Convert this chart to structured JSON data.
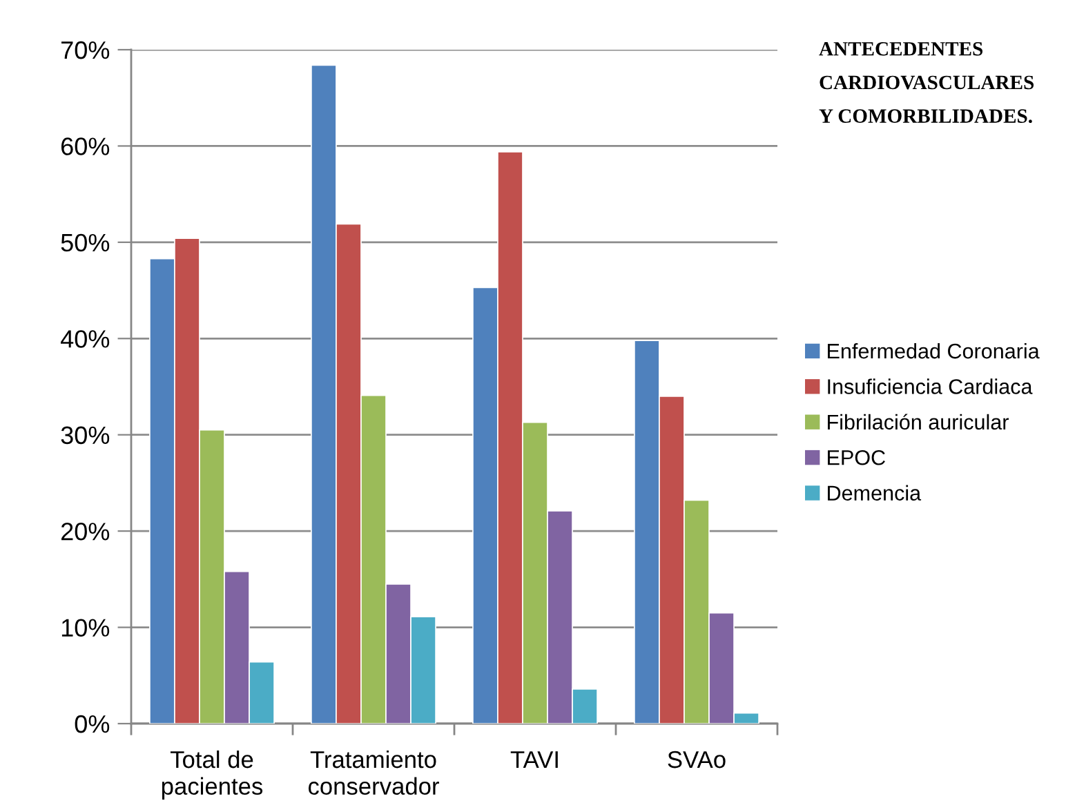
{
  "chart_data": {
    "type": "bar",
    "title": "ANTECEDENTES\nCARDIOVASCULARES\nY COMORBILIDADES.",
    "categories": [
      "Total de\npacientes",
      "Tratamiento\nconservador",
      "TAVI",
      "SVAo"
    ],
    "series": [
      {
        "name": "Enfermedad Coronaria",
        "color": "#4f81bd",
        "values": [
          48.3,
          68.4,
          45.3,
          39.8
        ]
      },
      {
        "name": "Insuficiencia Cardiaca",
        "color": "#c0504d",
        "values": [
          50.4,
          51.9,
          59.4,
          34.0
        ]
      },
      {
        "name": "Fibrilación auricular",
        "color": "#9bbb59",
        "values": [
          30.5,
          34.1,
          31.3,
          23.2
        ]
      },
      {
        "name": "EPOC",
        "color": "#8064a2",
        "values": [
          15.8,
          14.5,
          22.1,
          11.5
        ]
      },
      {
        "name": "Demencia",
        "color": "#4bacc6",
        "values": [
          6.4,
          11.1,
          3.6,
          1.1
        ]
      }
    ],
    "ylim": [
      0,
      70
    ],
    "yticks": [
      {
        "value": 0,
        "label": "0%"
      },
      {
        "value": 10,
        "label": "10%"
      },
      {
        "value": 20,
        "label": "20%"
      },
      {
        "value": 30,
        "label": "30%"
      },
      {
        "value": 40,
        "label": "40%"
      },
      {
        "value": 50,
        "label": "50%"
      },
      {
        "value": 60,
        "label": "60%"
      },
      {
        "value": 70,
        "label": "70%"
      }
    ],
    "grid": "y",
    "legend": "right"
  }
}
